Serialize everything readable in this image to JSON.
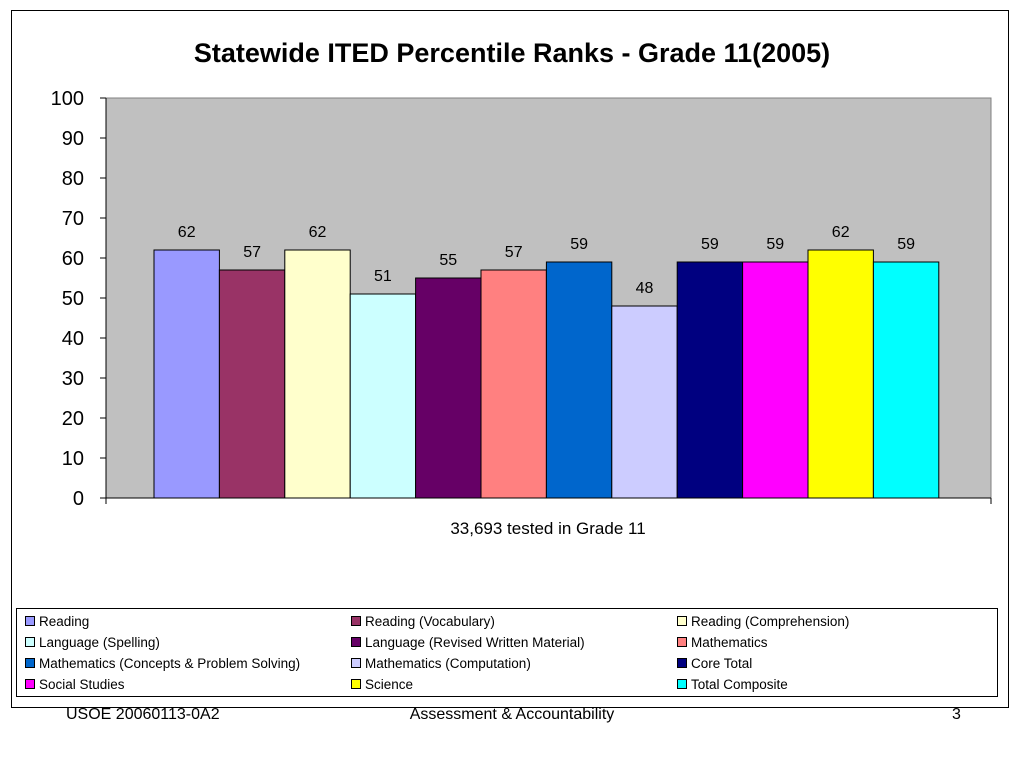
{
  "chart_data": {
    "type": "bar",
    "title": "Statewide ITED Percentile Ranks - Grade 11(2005)",
    "xlabel": "33,693 tested in Grade 11",
    "ylabel": "",
    "ylim": [
      0,
      100
    ],
    "yticks": [
      0,
      10,
      20,
      30,
      40,
      50,
      60,
      70,
      80,
      90,
      100
    ],
    "grid": false,
    "legend": "bottom",
    "plot_background": "#C0C0C0",
    "series": [
      {
        "name": "Reading",
        "value": 62,
        "color": "#9999FF"
      },
      {
        "name": "Reading (Vocabulary)",
        "value": 57,
        "color": "#993366"
      },
      {
        "name": "Reading (Comprehension)",
        "value": 62,
        "color": "#FFFFCC"
      },
      {
        "name": "Language (Spelling)",
        "value": 51,
        "color": "#CCFFFF"
      },
      {
        "name": "Language (Revised Written Material)",
        "value": 55,
        "color": "#660066"
      },
      {
        "name": "Mathematics",
        "value": 57,
        "color": "#FF8080"
      },
      {
        "name": "Mathematics (Concepts & Problem Solving)",
        "value": 59,
        "color": "#0066CC"
      },
      {
        "name": "Mathematics (Computation)",
        "value": 48,
        "color": "#CCCCFF"
      },
      {
        "name": "Core Total",
        "value": 59,
        "color": "#000080"
      },
      {
        "name": "Social Studies",
        "value": 59,
        "color": "#FF00FF"
      },
      {
        "name": "Science",
        "value": 62,
        "color": "#FFFF00"
      },
      {
        "name": "Total Composite",
        "value": 59,
        "color": "#00FFFF"
      }
    ]
  },
  "footer": {
    "left": "USOE 20060113-0A2",
    "center": "Assessment & Accountability",
    "right": "3"
  }
}
